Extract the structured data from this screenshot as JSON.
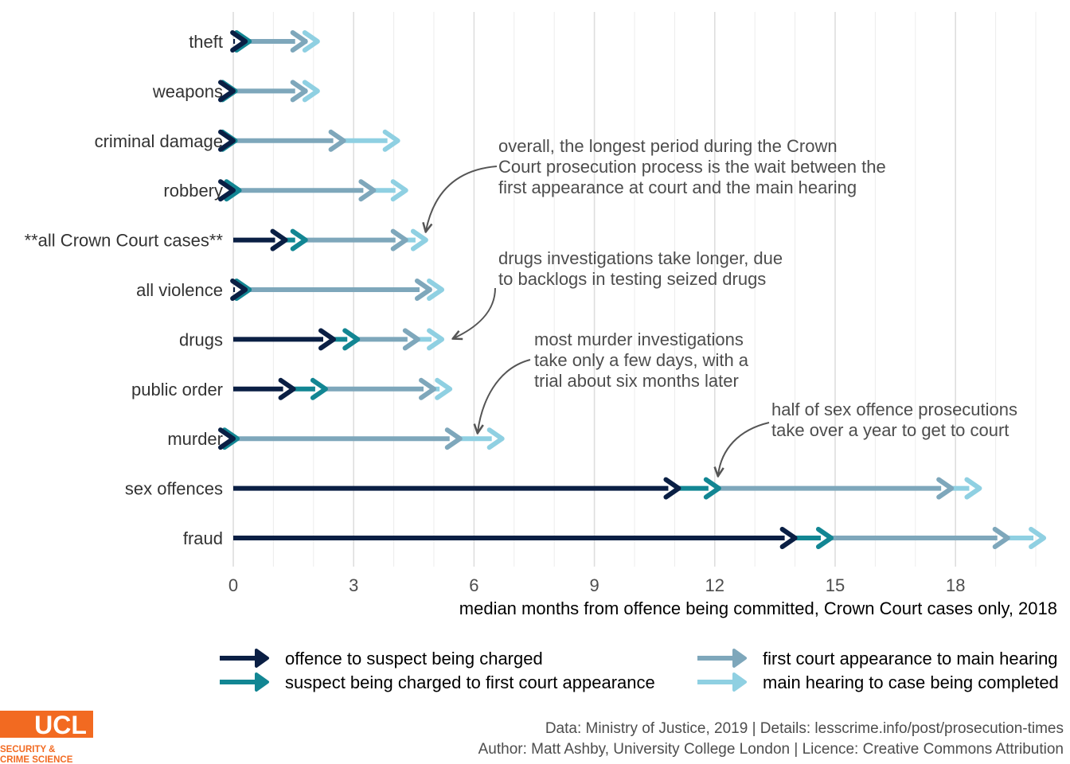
{
  "chart_data": {
    "type": "bar",
    "subtype": "stacked-arrow-timeline",
    "xlabel": "median months from offence being committed, Crown Court cases only, 2018",
    "xlim": [
      0,
      20
    ],
    "xticks": [
      0,
      3,
      6,
      9,
      12,
      15,
      18
    ],
    "grid": true,
    "categories": [
      "theft",
      "weapons",
      "criminal damage",
      "robbery",
      "**all Crown Court cases**",
      "all violence",
      "drugs",
      "public order",
      "murder",
      "sex offences",
      "fraud"
    ],
    "series": [
      {
        "name": "offence to suspect being charged",
        "color": "#0a1f44",
        "values": [
          0.3,
          0.0,
          0.0,
          0.0,
          1.3,
          0.3,
          2.5,
          1.5,
          0.0,
          11.1,
          14.0
        ]
      },
      {
        "name": "suspect being charged to first court appearance",
        "color": "#128693",
        "values": [
          0.1,
          0.05,
          0.05,
          0.15,
          0.5,
          0.1,
          0.6,
          0.8,
          0.1,
          1.0,
          0.9
        ]
      },
      {
        "name": "first court appearance to main hearing",
        "color": "#7ea7bb",
        "values": [
          1.4,
          1.75,
          2.7,
          3.35,
          2.5,
          4.5,
          1.5,
          2.7,
          5.55,
          5.8,
          4.4
        ]
      },
      {
        "name": "main hearing to case being completed",
        "color": "#8fd0e2",
        "values": [
          0.3,
          0.3,
          1.35,
          0.8,
          0.5,
          0.3,
          0.6,
          0.4,
          1.05,
          0.7,
          0.9
        ]
      }
    ],
    "annotations": [
      {
        "text": [
          "overall, the longest period during the Crown",
          "Court prosecution process is the wait between the",
          "first appearance at court and the main hearing"
        ],
        "points_to": "**all Crown Court cases**"
      },
      {
        "text": [
          "drugs investigations take longer, due",
          "to backlogs in testing seized drugs"
        ],
        "points_to": "drugs"
      },
      {
        "text": [
          "most murder investigations",
          "take only a few days, with a",
          "trial about six months later"
        ],
        "points_to": "murder"
      },
      {
        "text": [
          "half of sex offence prosecutions",
          "take over a year to get to court"
        ],
        "points_to": "sex offences"
      }
    ],
    "legend_position": "bottom"
  },
  "caption": {
    "line1": "Data: Ministry of Justice, 2019 |  Details: lesscrime.info/post/prosecution-times",
    "line2": "Author: Matt Ashby, University College London |  Licence: Creative Commons Attribution"
  },
  "logo": {
    "wordmark": "UCL",
    "line1": "SECURITY &",
    "line2": "CRIME SCIENCE",
    "color": "#f26a21"
  }
}
